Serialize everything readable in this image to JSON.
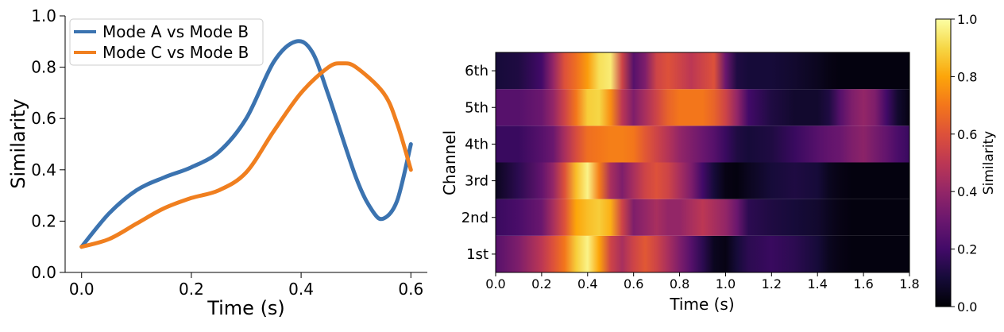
{
  "chart_data": [
    {
      "type": "line",
      "title": "",
      "xlabel": "Time (s)",
      "ylabel": "Similarity",
      "xlim": [
        -0.03,
        0.63
      ],
      "ylim": [
        0.0,
        1.0
      ],
      "xticks": [
        "0.0",
        "0.2",
        "0.4",
        "0.6"
      ],
      "yticks": [
        "0.0",
        "0.2",
        "0.4",
        "0.6",
        "0.8",
        "1.0"
      ],
      "grid": false,
      "legend": "top-left",
      "series": [
        {
          "name": "Mode A vs Mode B",
          "color": "#3b73b0",
          "x": [
            0.0,
            0.05,
            0.1,
            0.15,
            0.2,
            0.25,
            0.3,
            0.35,
            0.39,
            0.42,
            0.45,
            0.5,
            0.53,
            0.55,
            0.575,
            0.6
          ],
          "y": [
            0.1,
            0.23,
            0.32,
            0.37,
            0.41,
            0.47,
            0.6,
            0.82,
            0.9,
            0.86,
            0.69,
            0.37,
            0.24,
            0.21,
            0.28,
            0.5
          ]
        },
        {
          "name": "Mode C vs Mode B",
          "color": "#f07f1f",
          "x": [
            0.0,
            0.05,
            0.1,
            0.15,
            0.2,
            0.25,
            0.3,
            0.35,
            0.4,
            0.45,
            0.475,
            0.5,
            0.55,
            0.575,
            0.6
          ],
          "y": [
            0.1,
            0.13,
            0.19,
            0.25,
            0.29,
            0.32,
            0.39,
            0.55,
            0.7,
            0.8,
            0.815,
            0.8,
            0.7,
            0.58,
            0.4
          ]
        }
      ]
    },
    {
      "type": "heatmap",
      "title": "",
      "xlabel": "Time (s)",
      "ylabel": "Channel",
      "xlim": [
        0.0,
        1.8
      ],
      "xticks": [
        "0.0",
        "0.2",
        "0.4",
        "0.6",
        "0.8",
        "1.0",
        "1.2",
        "1.4",
        "1.6",
        "1.8"
      ],
      "rows": [
        "1st",
        "2nd",
        "3rd",
        "4th",
        "5th",
        "6th"
      ],
      "colorscale": "inferno",
      "colorbar": {
        "label": "Similarity",
        "min": 0.0,
        "max": 1.0,
        "ticks": [
          "0.0",
          "0.2",
          "0.4",
          "0.6",
          "0.8",
          "1.0"
        ]
      },
      "grid": false,
      "cols_x": [
        0.0,
        0.1,
        0.2,
        0.25,
        0.3,
        0.35,
        0.4,
        0.45,
        0.5,
        0.55,
        0.6,
        0.65,
        0.7,
        0.75,
        0.8,
        0.85,
        0.9,
        0.95,
        1.0,
        1.05,
        1.1,
        1.2,
        1.3,
        1.4,
        1.45,
        1.5,
        1.55,
        1.6,
        1.65,
        1.7,
        1.75,
        1.8
      ],
      "values": [
        [
          0.25,
          0.35,
          0.5,
          0.6,
          0.7,
          0.88,
          0.97,
          0.8,
          0.55,
          0.45,
          0.55,
          0.62,
          0.55,
          0.45,
          0.35,
          0.25,
          0.15,
          0.05,
          0.03,
          0.1,
          0.15,
          0.18,
          0.15,
          0.1,
          0.05,
          0.03,
          0.02,
          0.02,
          0.02,
          0.02,
          0.02,
          0.02
        ],
        [
          0.18,
          0.22,
          0.3,
          0.45,
          0.6,
          0.8,
          0.85,
          0.88,
          0.82,
          0.55,
          0.35,
          0.4,
          0.45,
          0.4,
          0.4,
          0.45,
          0.5,
          0.45,
          0.4,
          0.3,
          0.15,
          0.12,
          0.1,
          0.08,
          0.05,
          0.03,
          0.02,
          0.02,
          0.02,
          0.02,
          0.02,
          0.02
        ],
        [
          0.05,
          0.15,
          0.28,
          0.4,
          0.6,
          0.85,
          0.97,
          0.72,
          0.45,
          0.35,
          0.45,
          0.55,
          0.6,
          0.55,
          0.45,
          0.35,
          0.2,
          0.1,
          0.03,
          0.02,
          0.05,
          0.1,
          0.12,
          0.1,
          0.05,
          0.03,
          0.02,
          0.02,
          0.02,
          0.02,
          0.02,
          0.02
        ],
        [
          0.18,
          0.18,
          0.25,
          0.3,
          0.45,
          0.58,
          0.68,
          0.7,
          0.72,
          0.72,
          0.7,
          0.62,
          0.55,
          0.48,
          0.4,
          0.35,
          0.3,
          0.25,
          0.18,
          0.12,
          0.1,
          0.12,
          0.18,
          0.25,
          0.28,
          0.3,
          0.35,
          0.38,
          0.33,
          0.28,
          0.22,
          0.18
        ],
        [
          0.25,
          0.25,
          0.3,
          0.4,
          0.55,
          0.7,
          0.88,
          0.9,
          0.75,
          0.5,
          0.35,
          0.45,
          0.55,
          0.65,
          0.7,
          0.7,
          0.7,
          0.65,
          0.55,
          0.4,
          0.2,
          0.12,
          0.08,
          0.08,
          0.12,
          0.25,
          0.35,
          0.4,
          0.35,
          0.2,
          0.08,
          0.03
        ],
        [
          0.1,
          0.12,
          0.2,
          0.4,
          0.6,
          0.68,
          0.78,
          0.92,
          0.95,
          0.55,
          0.25,
          0.35,
          0.55,
          0.6,
          0.55,
          0.5,
          0.55,
          0.6,
          0.3,
          0.12,
          0.1,
          0.1,
          0.08,
          0.05,
          0.03,
          0.02,
          0.02,
          0.02,
          0.02,
          0.02,
          0.02,
          0.02
        ]
      ]
    }
  ]
}
